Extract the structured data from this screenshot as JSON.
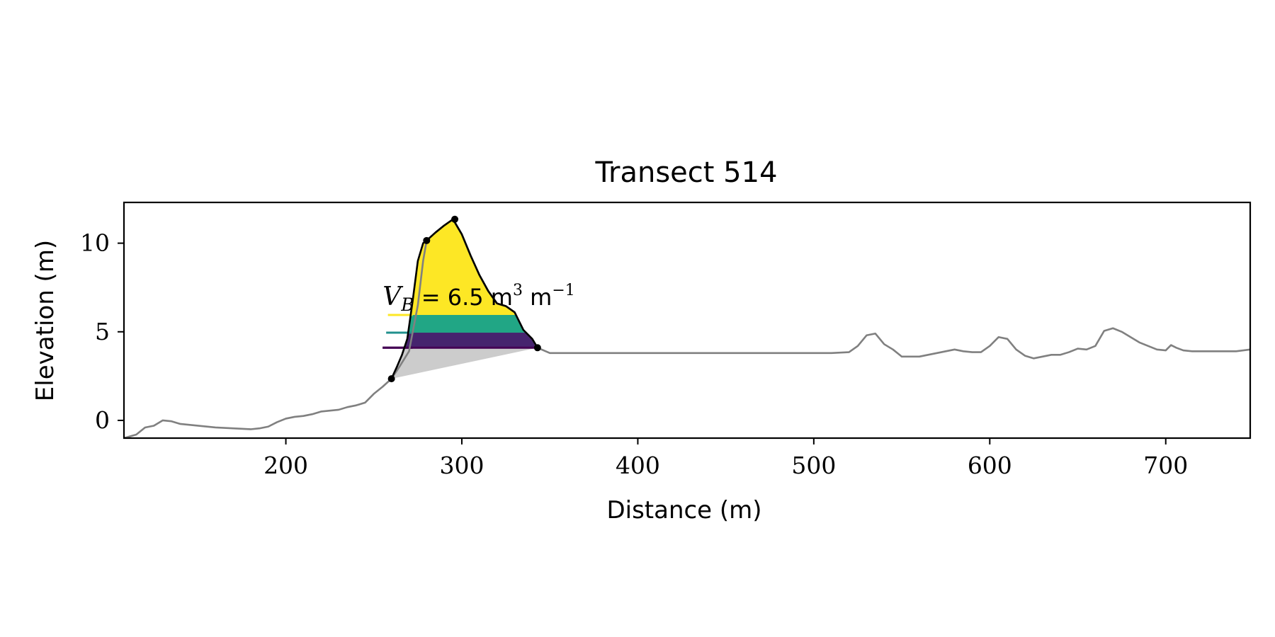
{
  "chart_data": {
    "type": "line",
    "title": "Transect 514",
    "xlabel": "Distance (m)",
    "ylabel": "Elevation (m)",
    "xlim": [
      108,
      748
    ],
    "ylim": [
      -1,
      12.3
    ],
    "xticks": [
      200,
      300,
      400,
      500,
      600,
      700
    ],
    "yticks": [
      0,
      5,
      10
    ],
    "grid": false,
    "profile": {
      "color": "#808080",
      "x": [
        108,
        115,
        120,
        125,
        130,
        135,
        140,
        145,
        150,
        160,
        170,
        180,
        185,
        190,
        195,
        200,
        205,
        210,
        215,
        220,
        225,
        230,
        235,
        240,
        245,
        250,
        255,
        260,
        265,
        270,
        275,
        278,
        280,
        285,
        290,
        295,
        300,
        305,
        310,
        315,
        320,
        325,
        330,
        335,
        340,
        343,
        350,
        360,
        380,
        400,
        420,
        450,
        480,
        510,
        520,
        525,
        530,
        535,
        540,
        545,
        550,
        555,
        560,
        565,
        570,
        575,
        580,
        585,
        590,
        595,
        600,
        605,
        610,
        615,
        620,
        625,
        630,
        635,
        640,
        645,
        650,
        655,
        660,
        665,
        670,
        675,
        680,
        685,
        690,
        695,
        700,
        703,
        706,
        710,
        715,
        720,
        730,
        740,
        748
      ],
      "y": [
        -1.0,
        -0.8,
        -0.4,
        -0.3,
        0.0,
        -0.05,
        -0.2,
        -0.25,
        -0.3,
        -0.4,
        -0.45,
        -0.5,
        -0.45,
        -0.35,
        -0.1,
        0.1,
        0.2,
        0.25,
        0.35,
        0.5,
        0.55,
        0.6,
        0.75,
        0.85,
        1.0,
        1.5,
        1.9,
        2.35,
        3.1,
        3.9,
        6.5,
        9.0,
        10.15,
        10.6,
        11.0,
        11.35,
        10.5,
        9.3,
        8.2,
        7.3,
        6.6,
        6.45,
        6.1,
        5.1,
        4.6,
        4.1,
        3.8,
        3.8,
        3.8,
        3.8,
        3.8,
        3.8,
        3.8,
        3.8,
        3.85,
        4.2,
        4.8,
        4.9,
        4.3,
        4.0,
        3.6,
        3.6,
        3.6,
        3.7,
        3.8,
        3.9,
        4.0,
        3.9,
        3.85,
        3.85,
        4.2,
        4.7,
        4.6,
        4.0,
        3.65,
        3.5,
        3.6,
        3.7,
        3.7,
        3.85,
        4.05,
        4.0,
        4.2,
        5.05,
        5.2,
        5.0,
        4.7,
        4.4,
        4.2,
        4.0,
        3.95,
        4.25,
        4.1,
        3.95,
        3.9,
        3.9,
        3.9,
        3.9,
        4.0
      ]
    },
    "dune_outline": {
      "color": "#000000",
      "x": [
        260,
        263,
        266,
        269,
        272,
        275,
        278,
        280,
        285,
        290,
        295,
        300,
        305,
        310,
        315,
        320,
        325,
        330,
        335,
        340,
        343
      ],
      "y": [
        2.35,
        3.0,
        3.7,
        4.6,
        6.7,
        9.0,
        10.0,
        10.15,
        10.6,
        11.0,
        11.35,
        10.5,
        9.3,
        8.2,
        7.3,
        6.6,
        6.45,
        6.1,
        5.1,
        4.6,
        4.1
      ]
    },
    "points": {
      "x": [
        260,
        280,
        296,
        343
      ],
      "y": [
        2.35,
        10.15,
        11.35,
        4.1
      ]
    },
    "base_region": {
      "color": "#cccccc",
      "from": [
        260,
        2.35
      ],
      "to": [
        343,
        4.1
      ]
    },
    "bands": [
      {
        "color": "#fde725",
        "y0": 5.95,
        "y1": 11.4,
        "legend_xrange": [
          258,
          272
        ]
      },
      {
        "color": "#21a685",
        "y0": 4.95,
        "y1": 5.95,
        "legend_xrange": [
          257,
          272
        ]
      },
      {
        "color": "#46246e",
        "y0": 4.1,
        "y1": 4.95,
        "legend_xrange": [
          255,
          272
        ]
      }
    ],
    "band_lines_colors": [
      "#fde725",
      "#21908d",
      "#440154"
    ],
    "annotation": {
      "symbol": "V",
      "subscript": "B",
      "value": "6.5",
      "unit": "m",
      "unit_exp": "3",
      "per": "m",
      "per_exp": "−1"
    }
  }
}
